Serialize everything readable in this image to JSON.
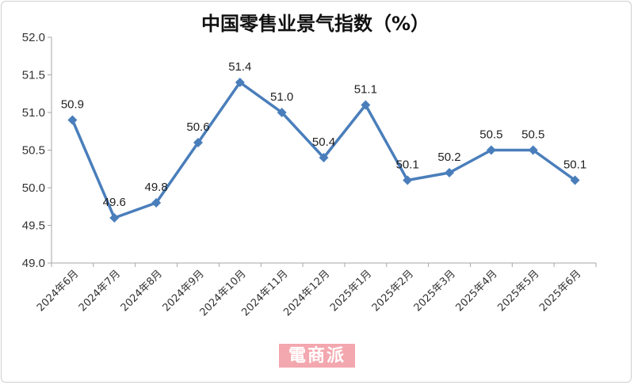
{
  "chart_data": {
    "type": "line",
    "title": "中国零售业景气指数（%）",
    "categories": [
      "2024年6月",
      "2024年7月",
      "2024年8月",
      "2024年9月",
      "2024年10月",
      "2024年11月",
      "2024年12月",
      "2025年1月",
      "2025年2月",
      "2025年3月",
      "2025年4月",
      "2025年5月",
      "2025年6月"
    ],
    "values": [
      50.9,
      49.6,
      49.8,
      50.6,
      51.4,
      51.0,
      50.4,
      51.1,
      50.1,
      50.2,
      50.5,
      50.5,
      50.1
    ],
    "data_labels": [
      "50.9",
      "49.6",
      "49.8",
      "50.6",
      "51.4",
      "51.0",
      "50.4",
      "51.1",
      "50.1",
      "50.2",
      "50.5",
      "50.5",
      "50.1"
    ],
    "y_ticks": [
      "49.0",
      "49.5",
      "50.0",
      "50.5",
      "51.0",
      "51.5",
      "52.0"
    ],
    "ylim": [
      49.0,
      52.0
    ],
    "line_color": "#4a7ebb",
    "grid": false,
    "legend": "none"
  },
  "watermark": {
    "text": "電商派"
  }
}
